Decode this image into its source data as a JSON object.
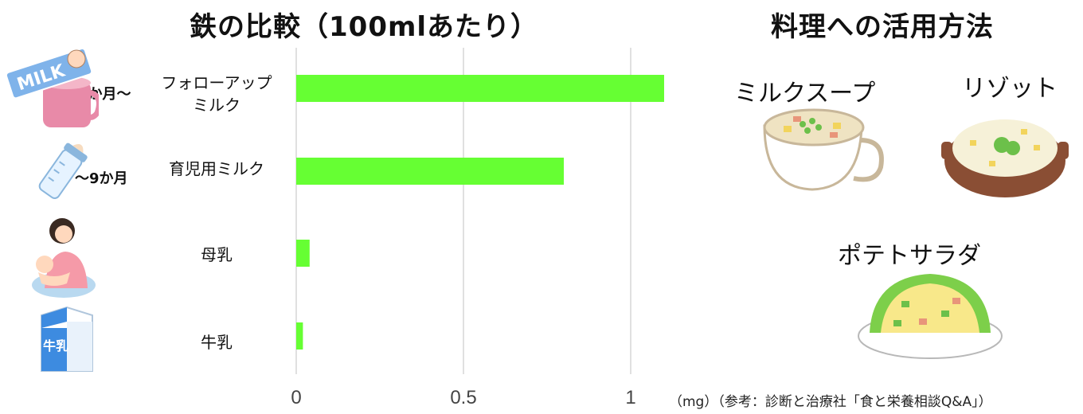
{
  "chart_data": {
    "type": "bar",
    "orientation": "horizontal",
    "title": "鉄の比較（100mlあたり）",
    "unit": "（mg）",
    "categories": [
      "フォローアップ\nミルク",
      "育児用ミルク",
      "母乳",
      "牛乳"
    ],
    "values": [
      1.1,
      0.8,
      0.04,
      0.02
    ],
    "xlim": [
      0,
      1.1
    ],
    "xticks": [
      "0",
      "0.5",
      "1"
    ],
    "grid": true,
    "bar_color": "#66ff33"
  },
  "ages": [
    "9か月～",
    "～9か月"
  ],
  "source_note": "（mg）（参考：診断と治療社「食と栄養相談Q&A」）",
  "side_panel": {
    "title": "料理への活用方法",
    "dishes": [
      "ミルクスープ",
      "リゾット",
      "ポテトサラダ"
    ]
  },
  "icons": {
    "milk_pack_text": "MILK",
    "carton_text": "牛乳"
  }
}
